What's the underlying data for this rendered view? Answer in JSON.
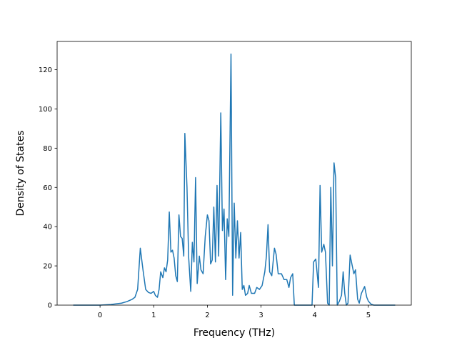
{
  "chart_data": {
    "type": "line",
    "x_label": "Frequency (THz)",
    "y_label": "Density of States",
    "x": [
      -0.5,
      0,
      0.2,
      0.4,
      0.5,
      0.6,
      0.65,
      0.7,
      0.75,
      0.8,
      0.85,
      0.9,
      0.95,
      1.0,
      1.03,
      1.07,
      1.1,
      1.13,
      1.17,
      1.2,
      1.23,
      1.26,
      1.29,
      1.32,
      1.35,
      1.38,
      1.41,
      1.44,
      1.47,
      1.5,
      1.53,
      1.56,
      1.58,
      1.62,
      1.65,
      1.69,
      1.72,
      1.75,
      1.78,
      1.81,
      1.85,
      1.88,
      1.92,
      1.96,
      2.0,
      2.03,
      2.06,
      2.09,
      2.12,
      2.15,
      2.18,
      2.21,
      2.25,
      2.28,
      2.31,
      2.34,
      2.37,
      2.4,
      2.44,
      2.47,
      2.5,
      2.53,
      2.56,
      2.59,
      2.62,
      2.65,
      2.68,
      2.71,
      2.75,
      2.78,
      2.82,
      2.88,
      2.92,
      2.97,
      3.02,
      3.07,
      3.1,
      3.13,
      3.16,
      3.2,
      3.25,
      3.28,
      3.32,
      3.38,
      3.43,
      3.48,
      3.52,
      3.55,
      3.59,
      3.62,
      3.95,
      3.98,
      4.02,
      4.07,
      4.1,
      4.13,
      4.17,
      4.2,
      4.24,
      4.27,
      4.3,
      4.33,
      4.36,
      4.39,
      4.42,
      4.46,
      4.5,
      4.53,
      4.56,
      4.59,
      4.62,
      4.66,
      4.7,
      4.73,
      4.76,
      4.8,
      4.83,
      4.87,
      4.93,
      4.97,
      5.0,
      5.05,
      5.1,
      5.5
    ],
    "series": [
      {
        "color": "#1f77b4",
        "values": [
          0,
          0,
          0.3,
          1,
          1.8,
          3,
          4,
          8,
          29,
          18,
          8,
          6.5,
          6,
          7,
          5,
          4,
          8,
          17,
          14,
          19,
          17,
          23,
          47.5,
          27,
          28,
          24,
          15,
          12,
          46,
          35,
          34,
          25,
          87.5,
          60,
          25,
          7,
          32,
          22,
          65,
          11,
          25,
          18,
          16,
          35,
          46,
          43,
          21,
          23,
          50,
          22,
          61,
          25,
          98,
          38,
          49,
          13,
          44,
          35,
          128,
          5,
          52,
          24,
          43,
          24,
          37,
          8,
          10,
          5,
          6,
          10,
          6,
          6,
          9,
          8,
          10,
          17,
          25,
          41,
          17,
          15,
          29,
          26,
          16,
          16,
          13,
          13,
          9,
          14,
          16,
          0,
          0,
          22,
          23.5,
          9,
          61,
          27,
          31,
          27,
          1,
          0,
          60,
          20,
          72.5,
          65,
          0,
          2,
          5,
          17,
          6,
          0,
          1,
          25.5,
          20,
          16,
          18,
          3,
          1,
          6,
          9.5,
          4,
          2,
          0.5,
          0,
          0
        ]
      }
    ],
    "xlim": [
      -0.8,
      5.8
    ],
    "ylim": [
      0,
      134.4
    ],
    "xticks": [
      0,
      1,
      2,
      3,
      4,
      5
    ],
    "yticks": [
      0,
      20,
      40,
      60,
      80,
      100,
      120
    ]
  }
}
